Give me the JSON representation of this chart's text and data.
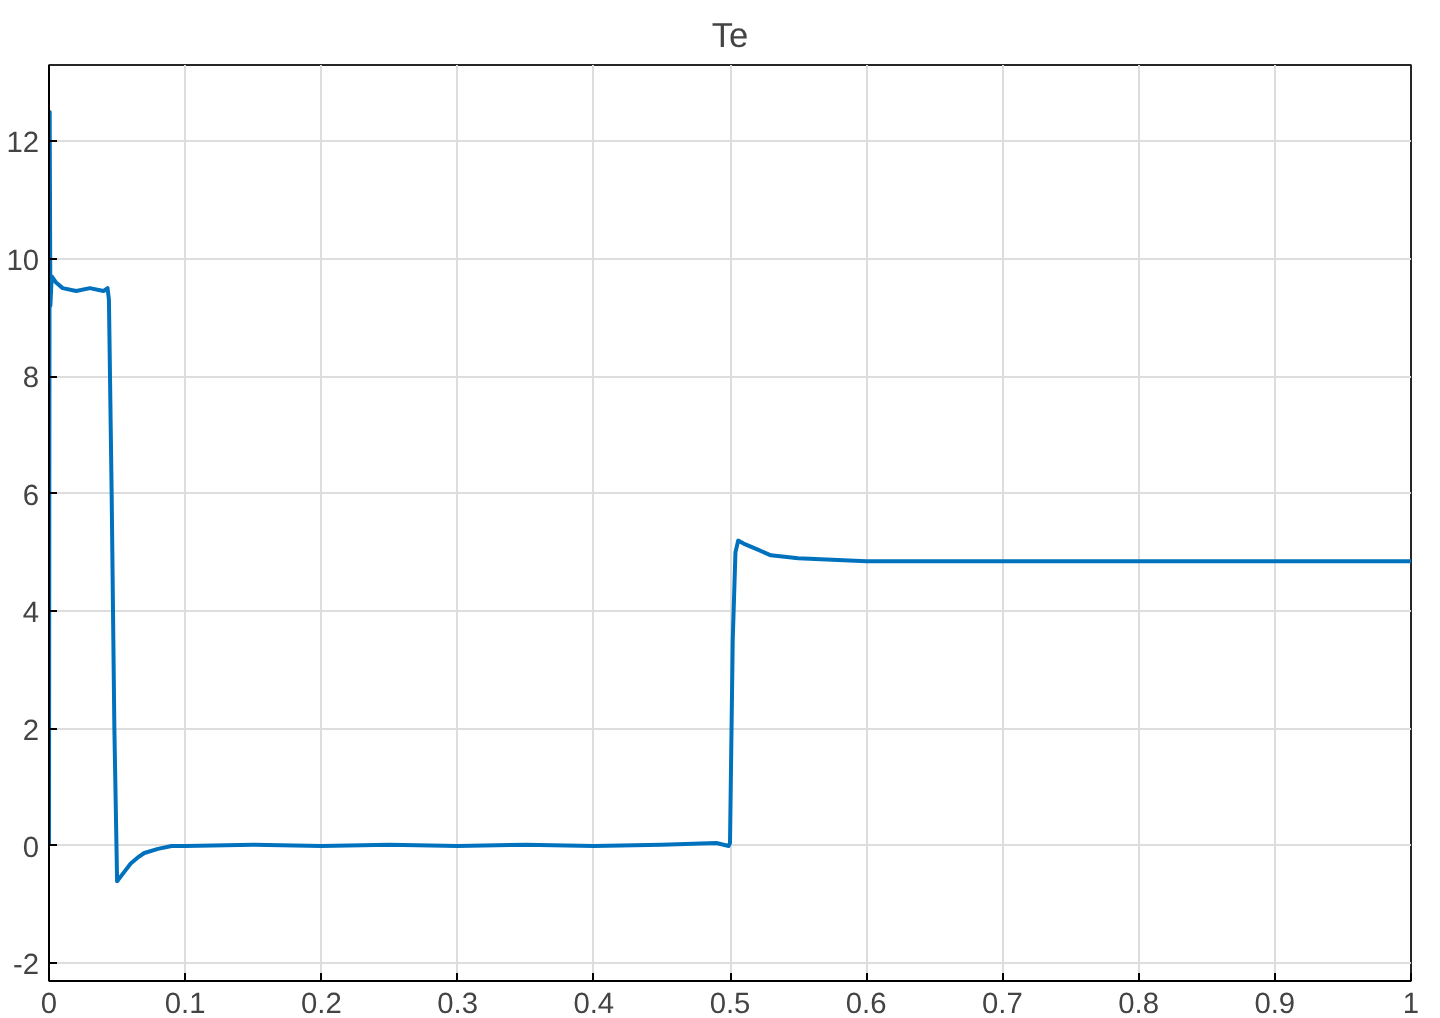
{
  "chart_data": {
    "type": "line",
    "title": "Te",
    "x": [
      0,
      0.0005,
      0.001,
      0.002,
      0.005,
      0.01,
      0.02,
      0.03,
      0.04,
      0.043,
      0.044,
      0.046,
      0.048,
      0.05,
      0.055,
      0.06,
      0.065,
      0.07,
      0.08,
      0.09,
      0.1,
      0.15,
      0.2,
      0.25,
      0.3,
      0.35,
      0.4,
      0.45,
      0.49,
      0.499,
      0.5,
      0.502,
      0.504,
      0.506,
      0.51,
      0.52,
      0.53,
      0.55,
      0.6,
      0.65,
      0.7,
      0.8,
      0.9,
      1
    ],
    "series": [
      {
        "color": "#0072bd",
        "values": [
          0,
          12.5,
          9.2,
          9.7,
          9.6,
          9.5,
          9.45,
          9.5,
          9.45,
          9.5,
          9.3,
          6,
          2,
          -0.6,
          -0.45,
          -0.3,
          -0.2,
          -0.12,
          -0.05,
          0,
          0,
          0.02,
          0,
          0.02,
          0,
          0.02,
          0,
          0.02,
          0.05,
          0,
          0.05,
          3.5,
          5.0,
          5.2,
          5.15,
          5.05,
          4.95,
          4.9,
          4.85,
          4.85,
          4.85,
          4.85,
          4.85,
          4.85
        ]
      }
    ],
    "xlim": [
      0,
      1
    ],
    "ylim": [
      -2.3,
      13.3
    ],
    "xticks": [
      0,
      0.1,
      0.2,
      0.3,
      0.4,
      0.5,
      0.6,
      0.7,
      0.8,
      0.9,
      1
    ],
    "yticks": [
      -2,
      0,
      2,
      4,
      6,
      8,
      10,
      12
    ],
    "grid": true
  }
}
